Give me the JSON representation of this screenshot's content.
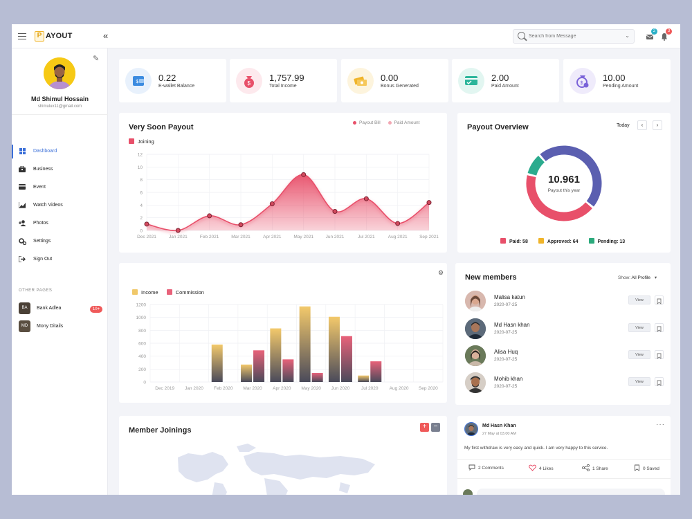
{
  "app": {
    "logo_letter": "P",
    "logo_text": "AYOUT"
  },
  "header": {
    "search_placeholder": "Search from Message",
    "messages_badge": "2",
    "notifications_badge": "3"
  },
  "user": {
    "name": "Md Shimul Hossain",
    "email": "shimulux11@gmail.com"
  },
  "nav": [
    {
      "label": "Dashboard",
      "icon": "grid-icon",
      "active": true
    },
    {
      "label": "Business",
      "icon": "briefcase-icon"
    },
    {
      "label": "Event",
      "icon": "card-icon"
    },
    {
      "label": "Watch Videos",
      "icon": "chart-icon"
    },
    {
      "label": "Photos",
      "icon": "user-plus-icon"
    },
    {
      "label": "Settings",
      "icon": "gears-icon"
    },
    {
      "label": "Sign Out",
      "icon": "signout-icon"
    }
  ],
  "other_pages": {
    "title": "OTHER PAGES",
    "items": [
      {
        "initials": "BA",
        "label": "Bank Adlea",
        "badge": "10+"
      },
      {
        "initials": "MD",
        "label": "Mony Ditails"
      }
    ]
  },
  "stats": [
    {
      "value": "0.22",
      "label": "E-wallet Balance",
      "color": "#3b8be0",
      "bg": "#e8f1fc"
    },
    {
      "value": "1,757.99",
      "label": "Total Income",
      "color": "#e8506a",
      "bg": "#fde9ed"
    },
    {
      "value": "0.00",
      "label": "Bonus Generated",
      "color": "#f0b429",
      "bg": "#fdf4dd"
    },
    {
      "value": "2.00",
      "label": "Paid Amount",
      "color": "#2bb59a",
      "bg": "#e2f6f1"
    },
    {
      "value": "10.00",
      "label": "Pending Amount",
      "color": "#7a62d8",
      "bg": "#efebfb"
    }
  ],
  "payout_chart": {
    "title": "Very Soon Payout",
    "legend": [
      "Payout Bill",
      "Paid Amount"
    ],
    "series_label": "Joining"
  },
  "overview": {
    "title": "Payout Overview",
    "filter": "Today",
    "center_value": "10.961",
    "center_label": "Payout this year",
    "legend": [
      {
        "label": "Paid: 58",
        "color": "#e8506a"
      },
      {
        "label": "Approved: 64",
        "color": "#f0b429"
      },
      {
        "label": "Pending: 13",
        "color": "#2baa7c"
      }
    ]
  },
  "bar_chart": {
    "legend": [
      "Income",
      "Commission"
    ]
  },
  "members": {
    "title": "New members",
    "show_label": "Show:",
    "show_value": "All Profile",
    "view_label": "View",
    "list": [
      {
        "name": "Malisa katun",
        "date": "2020-07-25"
      },
      {
        "name": "Md Hasn khan",
        "date": "2020-07-25"
      },
      {
        "name": "Alisa Huq",
        "date": "2020-07-25"
      },
      {
        "name": "Mohib khan",
        "date": "2020-07-25"
      }
    ]
  },
  "joinings": {
    "title": "Member Joinings",
    "zoom_in": "+",
    "zoom_out": "−"
  },
  "post": {
    "author": "Md Hasn Khan",
    "time": "27 May at 03.00 AM",
    "text": "My first withdraw is very easy and quick. I am very happy to this service.",
    "comments": "2 Comments",
    "likes": "4 Likes",
    "shares": "1 Share",
    "saved": "0 Saved"
  },
  "chart_data": [
    {
      "type": "area",
      "title": "Very Soon Payout",
      "series": [
        {
          "name": "Joining",
          "values": [
            1,
            0,
            2.3,
            0.9,
            4.2,
            8.8,
            3,
            5,
            1.1,
            4.4
          ]
        }
      ],
      "categories": [
        "Dec 2021",
        "Jan 2021",
        "Feb 2021",
        "Mar 2021",
        "Apr 2021",
        "May 2021",
        "Jun 2021",
        "Jul 2021",
        "Aug 2021",
        "Sep 2021"
      ],
      "yticks": [
        "0",
        "2",
        "4",
        "6",
        "8",
        "10",
        "12"
      ],
      "ylim": [
        0,
        12
      ],
      "color": "#e8506a"
    },
    {
      "type": "bar",
      "categories": [
        "Dec 2019",
        "Jan 2020",
        "Feb 2020",
        "Mar 2020",
        "Apr 2020",
        "May 2020",
        "Jun 2020",
        "Jul 2020",
        "Aug 2020",
        "Sep 2020"
      ],
      "series": [
        {
          "name": "Income",
          "values": [
            0,
            0,
            580,
            270,
            830,
            1170,
            1010,
            100,
            0,
            0
          ],
          "color": "#f0c86a"
        },
        {
          "name": "Commission",
          "values": [
            0,
            0,
            0,
            490,
            350,
            140,
            710,
            320,
            0,
            0
          ],
          "color": "#e8627a"
        }
      ],
      "yticks": [
        "0",
        "200",
        "400",
        "600",
        "800",
        "1000",
        "1200"
      ],
      "ylim": [
        0,
        1200
      ]
    },
    {
      "type": "pie",
      "title": "Payout Overview",
      "categories": [
        "Paid",
        "Approved",
        "Pending"
      ],
      "values": [
        58,
        64,
        13
      ],
      "colors": [
        "#e8506a",
        "#5b5fb0",
        "#2bab8e"
      ]
    }
  ]
}
